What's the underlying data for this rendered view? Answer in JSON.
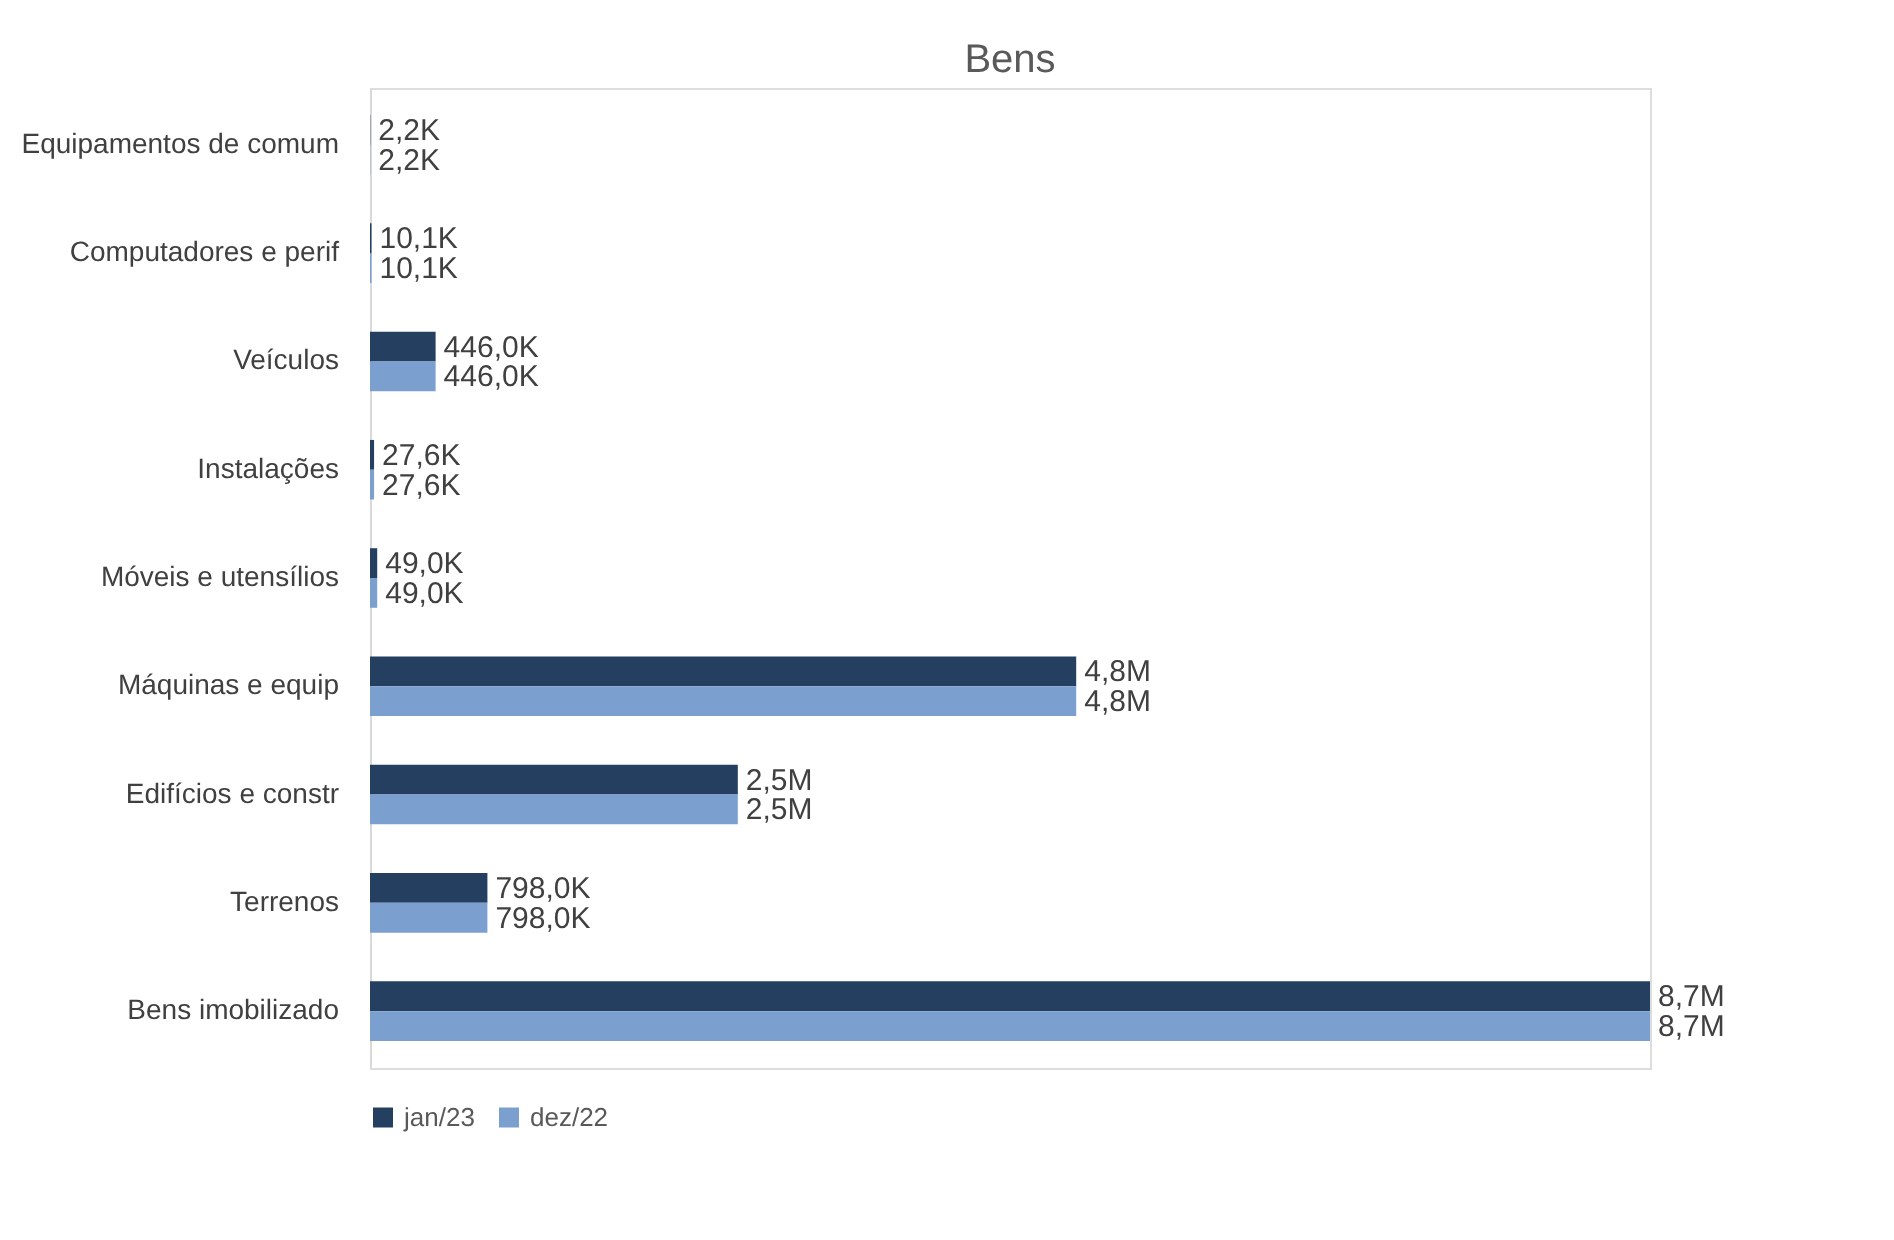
{
  "chart_data": {
    "type": "bar",
    "orientation": "horizontal",
    "title": "Bens",
    "legend": "bottom",
    "grid": false,
    "categories": [
      "Equipamentos de comum",
      "Computadores e perif",
      "Veículos",
      "Instalações",
      "Móveis e utensílios",
      "Máquinas e equip",
      "Edifícios e constr",
      "Terrenos",
      "Bens imobilizado"
    ],
    "series": [
      {
        "name": "jan/23",
        "color": "#243f60",
        "values": [
          2200,
          10100,
          446000,
          27600,
          49000,
          4800000,
          2500000,
          798000,
          8700000
        ],
        "value_labels": [
          "2,2K",
          "10,1K",
          "446,0K",
          "27,6K",
          "49,0K",
          "4,8M",
          "2,5M",
          "798,0K",
          "8,7M"
        ]
      },
      {
        "name": "dez/22",
        "color": "#7ba0d0",
        "values": [
          2200,
          10100,
          446000,
          27600,
          49000,
          4800000,
          2500000,
          798000,
          8700000
        ],
        "value_labels": [
          "2,2K",
          "10,1K",
          "446,0K",
          "27,6K",
          "49,0K",
          "4,8M",
          "2,5M",
          "798,0K",
          "8,7M"
        ]
      }
    ]
  }
}
